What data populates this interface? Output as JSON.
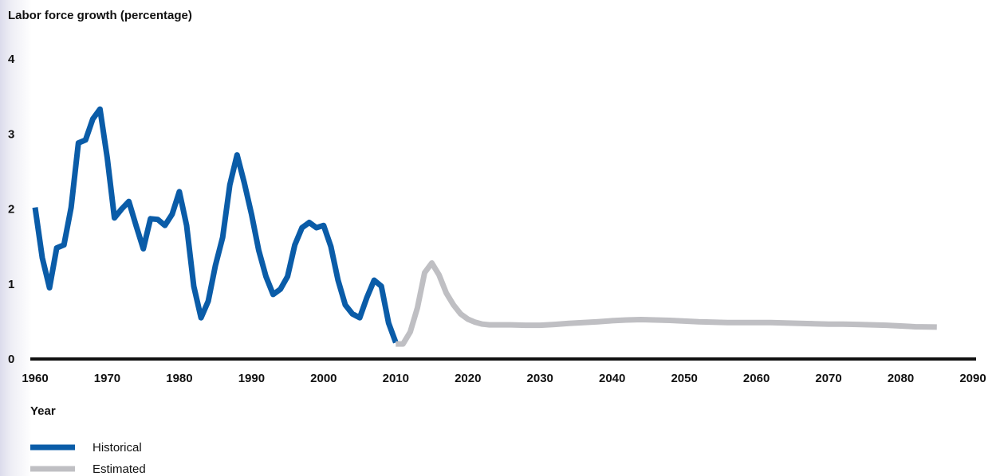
{
  "chart_data": {
    "type": "line",
    "title": "",
    "ylabel": "Labor force growth (percentage)",
    "xlabel": "Year",
    "xlim": [
      1960,
      2090
    ],
    "ylim": [
      0,
      4
    ],
    "x_ticks": [
      1960,
      1970,
      1980,
      1990,
      2000,
      2010,
      2020,
      2030,
      2040,
      2050,
      2060,
      2070,
      2080,
      2090
    ],
    "y_ticks": [
      0,
      1,
      2,
      3,
      4
    ],
    "grid": false,
    "legend": "bottom-left",
    "series": [
      {
        "name": "Historical",
        "color": "#0a5ca8",
        "points": [
          [
            1960,
            2.02
          ],
          [
            1961,
            1.35
          ],
          [
            1962,
            0.95
          ],
          [
            1963,
            1.48
          ],
          [
            1964,
            1.52
          ],
          [
            1965,
            2.02
          ],
          [
            1966,
            2.88
          ],
          [
            1967,
            2.92
          ],
          [
            1968,
            3.2
          ],
          [
            1969,
            3.33
          ],
          [
            1970,
            2.68
          ],
          [
            1971,
            1.88
          ],
          [
            1972,
            2.0
          ],
          [
            1973,
            2.1
          ],
          [
            1974,
            1.78
          ],
          [
            1975,
            1.47
          ],
          [
            1976,
            1.87
          ],
          [
            1977,
            1.86
          ],
          [
            1978,
            1.78
          ],
          [
            1979,
            1.93
          ],
          [
            1980,
            2.23
          ],
          [
            1981,
            1.78
          ],
          [
            1982,
            0.97
          ],
          [
            1983,
            0.55
          ],
          [
            1984,
            0.77
          ],
          [
            1985,
            1.25
          ],
          [
            1986,
            1.62
          ],
          [
            1987,
            2.32
          ],
          [
            1988,
            2.72
          ],
          [
            1989,
            2.35
          ],
          [
            1990,
            1.93
          ],
          [
            1991,
            1.45
          ],
          [
            1992,
            1.1
          ],
          [
            1993,
            0.86
          ],
          [
            1994,
            0.93
          ],
          [
            1995,
            1.1
          ],
          [
            1996,
            1.52
          ],
          [
            1997,
            1.75
          ],
          [
            1998,
            1.82
          ],
          [
            1999,
            1.75
          ],
          [
            2000,
            1.78
          ],
          [
            2001,
            1.5
          ],
          [
            2002,
            1.05
          ],
          [
            2003,
            0.72
          ],
          [
            2004,
            0.6
          ],
          [
            2005,
            0.55
          ],
          [
            2006,
            0.82
          ],
          [
            2007,
            1.05
          ],
          [
            2008,
            0.97
          ],
          [
            2009,
            0.48
          ],
          [
            2010,
            0.22
          ]
        ]
      },
      {
        "name": "Estimated",
        "color": "#bfbfc3",
        "points": [
          [
            2010,
            0.2
          ],
          [
            2011,
            0.2
          ],
          [
            2012,
            0.36
          ],
          [
            2013,
            0.68
          ],
          [
            2014,
            1.15
          ],
          [
            2015,
            1.28
          ],
          [
            2016,
            1.12
          ],
          [
            2017,
            0.88
          ],
          [
            2018,
            0.72
          ],
          [
            2019,
            0.6
          ],
          [
            2020,
            0.53
          ],
          [
            2021,
            0.49
          ],
          [
            2022,
            0.465
          ],
          [
            2023,
            0.455
          ],
          [
            2024,
            0.455
          ],
          [
            2025,
            0.455
          ],
          [
            2026,
            0.455
          ],
          [
            2028,
            0.45
          ],
          [
            2030,
            0.45
          ],
          [
            2032,
            0.46
          ],
          [
            2034,
            0.475
          ],
          [
            2036,
            0.485
          ],
          [
            2038,
            0.495
          ],
          [
            2040,
            0.51
          ],
          [
            2042,
            0.52
          ],
          [
            2044,
            0.525
          ],
          [
            2046,
            0.52
          ],
          [
            2048,
            0.515
          ],
          [
            2050,
            0.505
          ],
          [
            2052,
            0.495
          ],
          [
            2054,
            0.49
          ],
          [
            2056,
            0.485
          ],
          [
            2058,
            0.485
          ],
          [
            2060,
            0.485
          ],
          [
            2062,
            0.485
          ],
          [
            2064,
            0.48
          ],
          [
            2066,
            0.475
          ],
          [
            2068,
            0.47
          ],
          [
            2070,
            0.465
          ],
          [
            2072,
            0.465
          ],
          [
            2074,
            0.46
          ],
          [
            2076,
            0.455
          ],
          [
            2078,
            0.45
          ],
          [
            2080,
            0.44
          ],
          [
            2082,
            0.43
          ],
          [
            2085,
            0.425
          ]
        ]
      }
    ]
  }
}
